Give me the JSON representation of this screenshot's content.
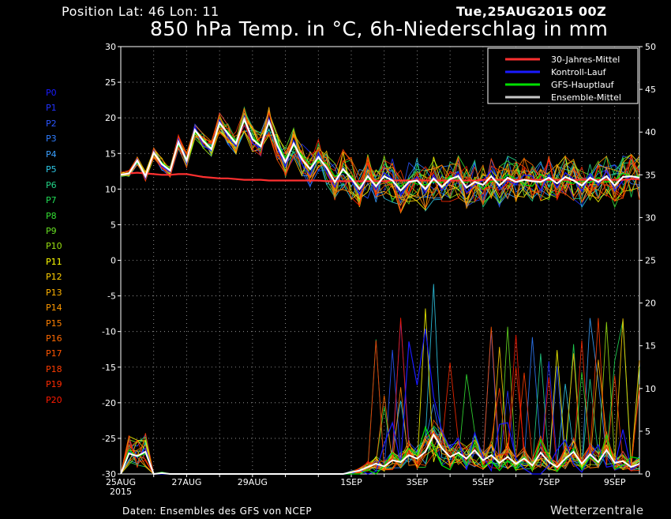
{
  "header": {
    "position": "Position   Lat: 46 Lon: 11",
    "run": "Tue,25AUG2015 00Z",
    "title": "850 hPa Temp. in °C, 6h-Niederschlag in mm"
  },
  "footer": {
    "source": "Daten: Ensembles des GFS von NCEP",
    "brand": "Wetterzentrale"
  },
  "members": [
    {
      "label": "P0",
      "color": "#1a1aff"
    },
    {
      "label": "P1",
      "color": "#2233ff"
    },
    {
      "label": "P2",
      "color": "#2a55ff"
    },
    {
      "label": "P3",
      "color": "#2f7dff"
    },
    {
      "label": "P4",
      "color": "#3aa0ff"
    },
    {
      "label": "P5",
      "color": "#2ec8e6"
    },
    {
      "label": "P6",
      "color": "#22d488"
    },
    {
      "label": "P7",
      "color": "#20dd55"
    },
    {
      "label": "P8",
      "color": "#33e033"
    },
    {
      "label": "P9",
      "color": "#66e022"
    },
    {
      "label": "P10",
      "color": "#99e011"
    },
    {
      "label": "P11",
      "color": "#ffff00"
    },
    {
      "label": "P12",
      "color": "#ffd000"
    },
    {
      "label": "P13",
      "color": "#ffb300"
    },
    {
      "label": "P14",
      "color": "#ff9900"
    },
    {
      "label": "P15",
      "color": "#ff8000"
    },
    {
      "label": "P16",
      "color": "#ff6a00"
    },
    {
      "label": "P17",
      "color": "#ff5500"
    },
    {
      "label": "P18",
      "color": "#ff3c00"
    },
    {
      "label": "P19",
      "color": "#ff2a00"
    },
    {
      "label": "P20",
      "color": "#ff1a00"
    }
  ],
  "chart_data": {
    "type": "line",
    "title": "850 hPa Temp. in °C, 6h-Niederschlag in mm",
    "x_ticks": [
      {
        "day": 0,
        "label": "25AUG",
        "sublabel": "2015"
      },
      {
        "day": 2,
        "label": "27AUG"
      },
      {
        "day": 4,
        "label": "29AUG"
      },
      {
        "day": 7,
        "label": "1SEP"
      },
      {
        "day": 9,
        "label": "3SEP"
      },
      {
        "day": 11,
        "label": "5SEP"
      },
      {
        "day": 13,
        "label": "7SEP"
      },
      {
        "day": 15,
        "label": "9SEP"
      }
    ],
    "x_range_days": [
      0,
      15.75
    ],
    "y_left": {
      "min": -30,
      "max": 30,
      "step": 5,
      "unit": "°C"
    },
    "y_right": {
      "min": 0,
      "max": 50,
      "step": 5,
      "unit": "mm"
    },
    "grid": true,
    "legend": {
      "placement": "top-right",
      "entries": [
        {
          "name": "30-Jahres-Mittel",
          "color": "#ff3030"
        },
        {
          "name": "Kontroll-Lauf",
          "color": "#1a1aff"
        },
        {
          "name": "GFS-Hauptlauf",
          "color": "#00e000"
        },
        {
          "name": "Ensemble-Mittel",
          "color": "#c8c8c8"
        }
      ]
    },
    "climate_mean_temp": [
      12.0,
      12.2,
      12.3,
      12.2,
      12.1,
      12.0,
      12.0,
      12.1,
      12.1,
      11.9,
      11.7,
      11.6,
      11.5,
      11.5,
      11.4,
      11.3,
      11.3,
      11.3,
      11.2,
      11.2,
      11.2,
      11.2,
      11.2,
      11.2,
      11.2,
      11.1,
      11.1,
      11.1,
      11.1,
      11.1,
      11.1,
      11.1,
      11.1,
      11.2,
      11.2,
      11.2,
      11.2,
      11.2,
      11.2,
      11.2,
      11.2,
      11.2,
      11.2,
      11.2,
      11.3,
      11.3,
      11.3,
      11.3,
      11.3,
      11.3,
      11.3,
      11.3,
      11.3,
      11.3,
      11.3,
      11.3,
      11.3,
      11.3,
      11.3,
      11.3,
      11.3,
      11.3,
      11.4,
      11.4
    ],
    "ensemble_mean_temp": [
      12.0,
      12.2,
      14.0,
      11.8,
      15.1,
      13.5,
      12.6,
      16.6,
      14.0,
      18.3,
      16.8,
      15.6,
      19.3,
      17.8,
      16.4,
      19.8,
      17.0,
      16.0,
      19.5,
      16.2,
      13.8,
      16.4,
      14.2,
      12.8,
      14.5,
      13.0,
      11.0,
      12.8,
      11.5,
      10.0,
      11.8,
      10.4,
      11.8,
      11.2,
      9.8,
      11.0,
      11.2,
      10.0,
      11.5,
      10.3,
      11.4,
      11.8,
      10.2,
      11.0,
      10.6,
      11.8,
      10.5,
      11.6,
      11.0,
      11.3,
      11.1,
      11.0,
      11.6,
      10.8,
      11.7,
      11.2,
      10.5,
      11.6,
      11.0,
      11.8,
      10.5,
      11.7,
      11.8,
      11.6
    ],
    "control_run_temp": [
      12.0,
      12.1,
      14.2,
      11.5,
      15.3,
      13.2,
      12.4,
      17.0,
      13.6,
      18.8,
      16.1,
      15.4,
      19.7,
      17.3,
      16.0,
      20.1,
      16.4,
      15.8,
      19.9,
      15.9,
      13.1,
      16.8,
      13.5,
      12.0,
      15.1,
      12.4,
      10.3,
      13.0,
      11.2,
      9.3,
      11.9,
      9.9,
      12.3,
      11.4,
      9.1,
      10.8,
      11.7,
      9.5,
      12.0,
      9.8,
      11.0,
      12.4,
      9.5,
      10.6,
      11.2,
      12.6,
      9.9,
      11.2,
      10.6,
      12.0,
      11.8,
      9.8,
      12.0,
      10.2,
      12.3,
      11.4,
      9.7,
      12.2,
      10.5,
      12.6,
      9.8,
      11.2,
      11.8,
      11.4
    ],
    "gfs_main_temp": [
      12.0,
      12.3,
      13.8,
      12.0,
      14.9,
      13.7,
      12.8,
      16.2,
      14.3,
      17.9,
      17.0,
      15.8,
      19.0,
      18.1,
      16.7,
      19.5,
      17.3,
      16.2,
      19.2,
      16.5,
      14.4,
      16.0,
      14.8,
      13.4,
      14.0,
      13.6,
      11.8,
      12.4,
      11.8,
      10.6,
      11.4,
      10.9,
      11.2,
      10.9,
      10.4,
      11.3,
      10.7,
      10.6,
      11.0,
      10.9,
      11.8,
      11.2,
      10.9,
      11.4,
      10.0,
      11.1,
      11.2,
      12.0,
      11.4,
      10.6,
      10.4,
      12.1,
      11.0,
      11.4,
      11.1,
      10.8,
      11.2,
      10.9,
      11.6,
      11.0,
      11.3,
      12.2,
      11.8,
      11.8
    ],
    "ensemble_mean_precip": [
      0,
      2.4,
      2.1,
      2.6,
      0,
      0.1,
      0,
      0,
      0,
      0,
      0,
      0,
      0,
      0,
      0,
      0,
      0,
      0,
      0,
      0,
      0,
      0,
      0,
      0,
      0,
      0,
      0,
      0,
      0.2,
      0.4,
      0.8,
      1.2,
      0.9,
      1.6,
      1.4,
      2.2,
      1.8,
      2.6,
      4.6,
      3.0,
      2.0,
      2.5,
      1.8,
      2.8,
      1.6,
      2.2,
      1.3,
      2.0,
      1.2,
      1.8,
      1.0,
      2.5,
      1.4,
      0.8,
      1.8,
      2.6,
      1.2,
      2.3,
      1.4,
      2.8,
      1.3,
      1.5,
      0.8,
      1.2
    ],
    "control_run_precip": [
      0,
      2.6,
      1.9,
      3.0,
      0,
      0,
      0,
      0,
      0,
      0,
      0,
      0,
      0,
      0,
      0,
      0,
      0,
      0,
      0,
      0,
      0,
      0,
      0,
      0,
      0,
      0,
      0,
      0,
      0,
      0.5,
      0.0,
      0.3,
      3.5,
      6.0,
      1.2,
      15.5,
      10.4,
      17.0,
      9.0,
      5.0,
      3.0,
      4.2,
      0.5,
      4.8,
      2.0,
      0.4,
      5.8,
      6.0,
      1.8,
      0.6,
      0,
      0,
      1.0,
      2.8,
      4.0,
      1.2,
      0.2,
      2.0,
      3.4,
      0.8,
      1.0,
      5.2,
      0.5,
      1.2
    ],
    "gfs_main_precip": [
      0,
      2.8,
      2.0,
      2.4,
      0,
      0.2,
      0,
      0,
      0,
      0,
      0,
      0,
      0,
      0,
      0,
      0,
      0,
      0,
      0,
      0,
      0,
      0,
      0,
      0,
      0,
      0,
      0,
      0,
      0,
      0,
      0.5,
      0,
      1.0,
      2.5,
      1.5,
      3.0,
      2.2,
      5.5,
      3.0,
      1.0,
      0.5,
      2.4,
      1.0,
      3.8,
      0.8,
      1.5,
      0.4,
      1.6,
      0.6,
      2.0,
      0.5,
      4.0,
      2.0,
      0.3,
      1.5,
      3.0,
      0.5,
      2.0,
      1.2,
      4.5,
      0.6,
      1.0,
      2.0,
      1.8
    ]
  }
}
